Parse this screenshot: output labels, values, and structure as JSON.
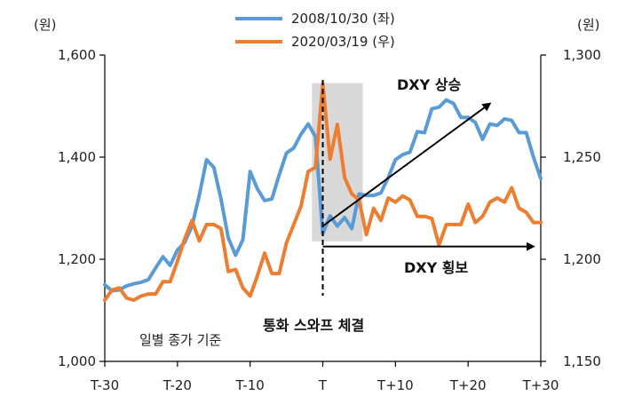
{
  "chart_data": {
    "type": "line",
    "title": "",
    "left_axis": {
      "unit_label": "(원)",
      "ylim": [
        1000,
        1600
      ],
      "ticks": [
        "1,000",
        "1,200",
        "1,400",
        "1,600"
      ],
      "tick_values": [
        1000,
        1200,
        1400,
        1600
      ]
    },
    "right_axis": {
      "unit_label": "(원)",
      "ylim": [
        1150,
        1300
      ],
      "ticks": [
        "1,150",
        "1,200",
        "1,250",
        "1,300"
      ],
      "tick_values": [
        1150,
        1200,
        1250,
        1300
      ]
    },
    "x_ticks": [
      "T-30",
      "T-20",
      "T-10",
      "T",
      "T+10",
      "T+20",
      "T+30"
    ],
    "x_tick_values": [
      -30,
      -20,
      -10,
      0,
      10,
      20,
      30
    ],
    "xlim": [
      -30,
      30
    ],
    "grid": false,
    "legend_placement": "top-center",
    "series": [
      {
        "name": "2008/10/30 (좌)",
        "axis": "left",
        "color": "#5b9bd5",
        "x": [
          -30,
          -29,
          -28,
          -27,
          -26,
          -25,
          -24,
          -23,
          -22,
          -21,
          -20,
          -19,
          -18,
          -17,
          -16,
          -15,
          -14,
          -13,
          -12,
          -11,
          -10,
          -9,
          -8,
          -7,
          -6,
          -5,
          -4,
          -3,
          -2,
          -1,
          0,
          1,
          2,
          3,
          4,
          5,
          6,
          7,
          8,
          9,
          10,
          11,
          12,
          13,
          14,
          15,
          16,
          17,
          18,
          19,
          20,
          21,
          22,
          23,
          24,
          25,
          26,
          27,
          28,
          29,
          30
        ],
        "values": [
          1150,
          1138,
          1140,
          1148,
          1152,
          1155,
          1160,
          1183,
          1205,
          1188,
          1218,
          1233,
          1265,
          1325,
          1395,
          1380,
          1318,
          1242,
          1208,
          1238,
          1372,
          1338,
          1315,
          1318,
          1365,
          1408,
          1418,
          1445,
          1465,
          1440,
          1250,
          1285,
          1265,
          1282,
          1260,
          1328,
          1325,
          1325,
          1330,
          1360,
          1395,
          1405,
          1410,
          1450,
          1448,
          1495,
          1498,
          1512,
          1505,
          1478,
          1478,
          1468,
          1435,
          1465,
          1462,
          1475,
          1472,
          1448,
          1448,
          1400,
          1358
        ]
      },
      {
        "name": "2020/03/19 (우)",
        "axis": "right",
        "color": "#ed7d31",
        "x": [
          -30,
          -29,
          -28,
          -27,
          -26,
          -25,
          -24,
          -23,
          -22,
          -21,
          -20,
          -19,
          -18,
          -17,
          -16,
          -15,
          -14,
          -13,
          -12,
          -11,
          -10,
          -9,
          -8,
          -7,
          -6,
          -5,
          -4,
          -3,
          -2,
          -1,
          0,
          1,
          2,
          3,
          4,
          5,
          6,
          7,
          8,
          9,
          10,
          11,
          12,
          13,
          14,
          15,
          16,
          17,
          18,
          19,
          20,
          21,
          22,
          23,
          24,
          25,
          26,
          27,
          28,
          29,
          30
        ],
        "values": [
          1180,
          1185,
          1186,
          1181,
          1180,
          1182,
          1183,
          1183,
          1189,
          1189,
          1199,
          1210,
          1219,
          1209,
          1217,
          1217,
          1215,
          1194,
          1195,
          1186,
          1182,
          1192,
          1203,
          1193,
          1193,
          1208,
          1217,
          1226,
          1243,
          1245,
          1286,
          1249,
          1266,
          1240,
          1232,
          1229,
          1212,
          1225,
          1219,
          1230,
          1228,
          1231,
          1229,
          1221,
          1221,
          1220,
          1207,
          1217,
          1217,
          1217,
          1227,
          1218,
          1221,
          1228,
          1230,
          1228,
          1235,
          1225,
          1223,
          1218,
          1218
        ]
      }
    ],
    "shaded_region": {
      "x_start": -1.5,
      "x_end": 5.5,
      "y_left_start": 1235,
      "y_left_end": 1545,
      "color": "#d9d9d9"
    },
    "vline": {
      "x": 0,
      "style": "dashed"
    },
    "annotations": [
      {
        "text": "DXY 상승",
        "arrow_from": [
          0,
          1265
        ],
        "arrow_to": [
          23,
          1505
        ]
      },
      {
        "text": "DXY 횡보",
        "arrow_from": [
          0,
          1225
        ],
        "arrow_to": [
          29,
          1225
        ]
      },
      {
        "text": "통화 스와프 체결"
      },
      {
        "text": "일별 종가 기준"
      }
    ]
  }
}
